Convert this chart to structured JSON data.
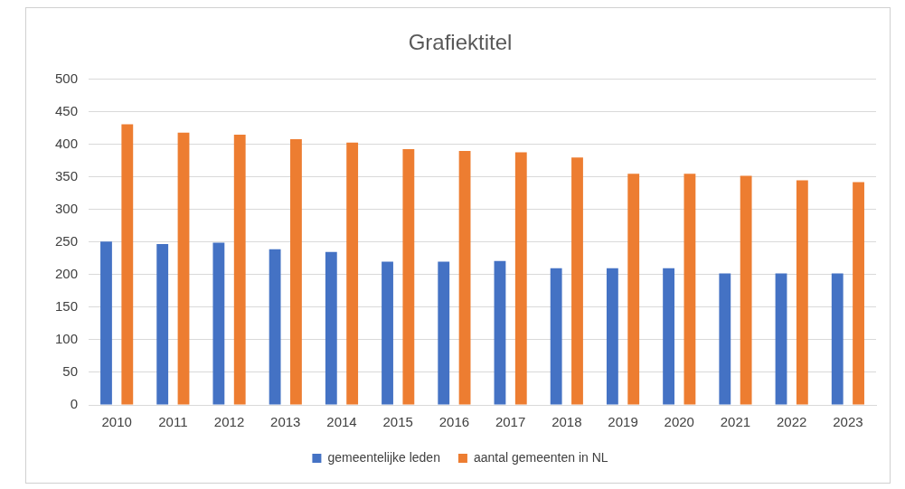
{
  "chart_data": {
    "type": "bar",
    "title": "Grafiektitel",
    "categories": [
      "2010",
      "2011",
      "2012",
      "2013",
      "2014",
      "2015",
      "2016",
      "2017",
      "2018",
      "2019",
      "2020",
      "2021",
      "2022",
      "2023"
    ],
    "series": [
      {
        "name": "gemeentelijke leden",
        "color": "#4472c4",
        "values": [
          251,
          247,
          249,
          239,
          235,
          220,
          220,
          221,
          210,
          210,
          210,
          202,
          202,
          202
        ]
      },
      {
        "name": "aantal gemeenten in NL",
        "color": "#ed7d31",
        "values": [
          431,
          418,
          415,
          408,
          403,
          393,
          390,
          388,
          380,
          355,
          355,
          352,
          345,
          342
        ]
      }
    ],
    "ylim": [
      0,
      500
    ],
    "yticks": [
      0,
      50,
      100,
      150,
      200,
      250,
      300,
      350,
      400,
      450,
      500
    ],
    "grid": "y",
    "legend": "bottom"
  }
}
